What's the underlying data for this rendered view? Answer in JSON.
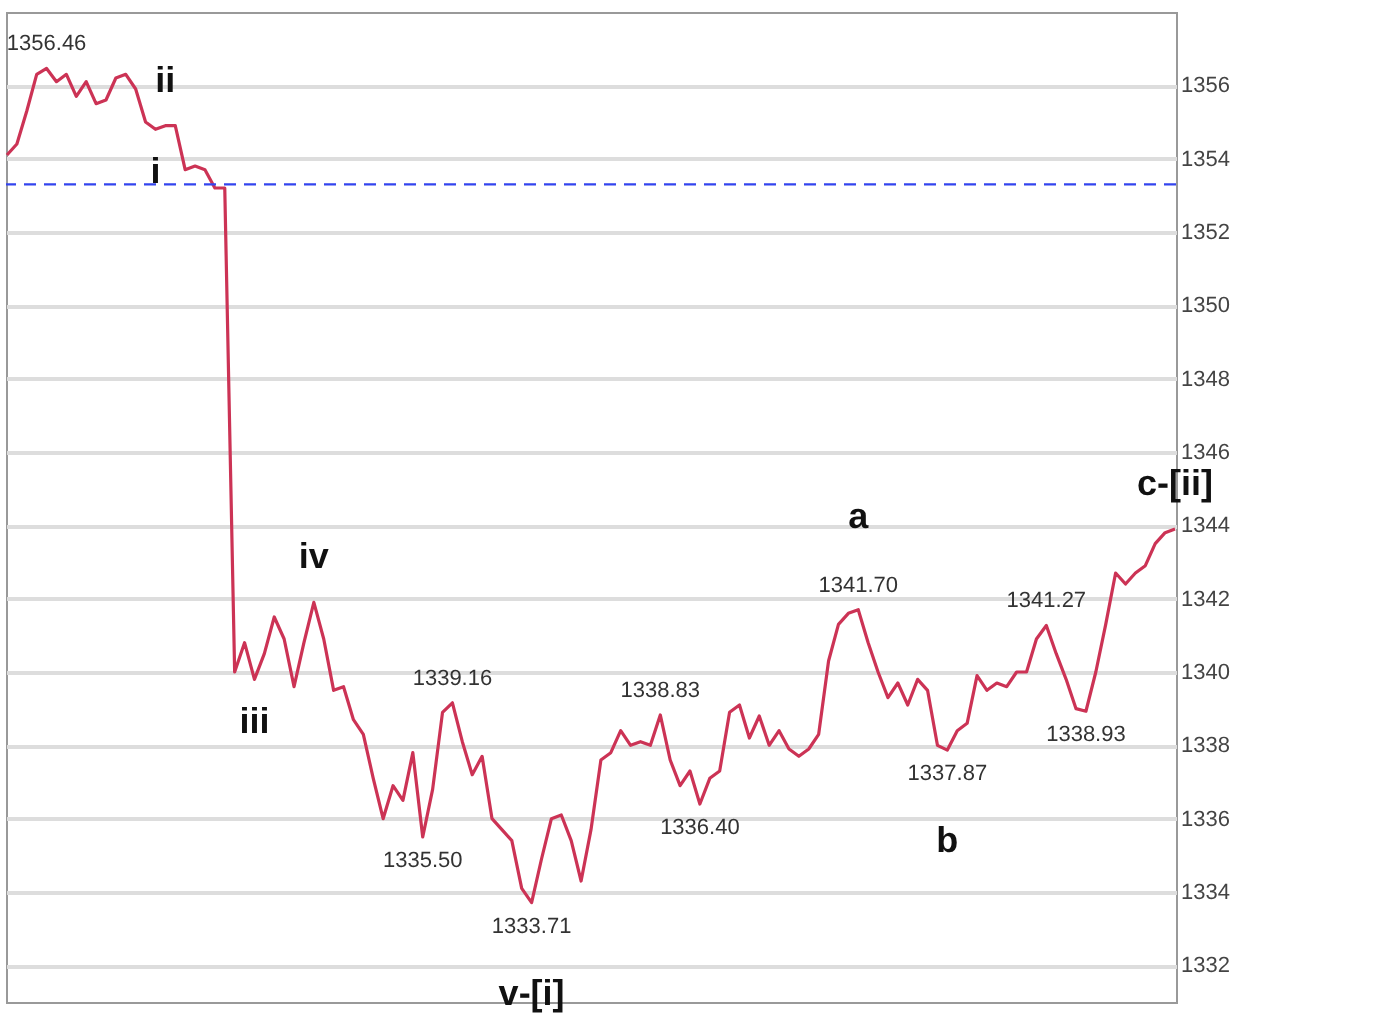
{
  "chart_data": {
    "type": "line",
    "categories": [
      null,
      null,
      null,
      null,
      null,
      null,
      null,
      null,
      null,
      null,
      null,
      null,
      null,
      null,
      null,
      null,
      null,
      null,
      null,
      null,
      null,
      null,
      null,
      null,
      null,
      null,
      null,
      null,
      null,
      null,
      null,
      null,
      null,
      null,
      null,
      null,
      null,
      null,
      null,
      null,
      null,
      null,
      null,
      null,
      null,
      null,
      null,
      null,
      null,
      null,
      null,
      null,
      null,
      null,
      null,
      null,
      null,
      null,
      null,
      null,
      null,
      null,
      null,
      null,
      null,
      null,
      null,
      null,
      null,
      null,
      null,
      null,
      null,
      null,
      null,
      null,
      null,
      null,
      null,
      null,
      null,
      null,
      null,
      null,
      null,
      null,
      null,
      null,
      null,
      null,
      null,
      null,
      null,
      null,
      null,
      null,
      null,
      null,
      null,
      null,
      null,
      null,
      null,
      null,
      null,
      null,
      null,
      null,
      null,
      null,
      null,
      null,
      null,
      null,
      null,
      null,
      null,
      null,
      null
    ],
    "series": [
      {
        "color": "#cc3355",
        "values": [
          1354.1,
          1354.4,
          1355.3,
          1356.3,
          1356.46,
          1356.1,
          1356.3,
          1355.7,
          1356.1,
          1355.5,
          1355.6,
          1356.2,
          1356.3,
          1355.9,
          1355.0,
          1354.8,
          1354.9,
          1354.9,
          1353.7,
          1353.8,
          1353.7,
          1353.2,
          1353.2,
          1340.0,
          1340.8,
          1339.8,
          1340.5,
          1341.5,
          1340.9,
          1339.6,
          1340.8,
          1341.9,
          1340.9,
          1339.5,
          1339.6,
          1338.7,
          1338.3,
          1337.1,
          1336.0,
          1336.9,
          1336.5,
          1337.8,
          1335.5,
          1336.8,
          1338.9,
          1339.16,
          1338.1,
          1337.2,
          1337.7,
          1336.0,
          1335.7,
          1335.4,
          1334.1,
          1333.71,
          1334.9,
          1336.0,
          1336.1,
          1335.4,
          1334.3,
          1335.7,
          1337.6,
          1337.8,
          1338.4,
          1338.0,
          1338.1,
          1338.0,
          1338.83,
          1337.6,
          1336.9,
          1337.3,
          1336.4,
          1337.1,
          1337.3,
          1338.9,
          1339.1,
          1338.2,
          1338.8,
          1338.0,
          1338.4,
          1337.9,
          1337.7,
          1337.9,
          1338.3,
          1340.3,
          1341.3,
          1341.6,
          1341.7,
          1340.8,
          1340.0,
          1339.3,
          1339.7,
          1339.1,
          1339.8,
          1339.5,
          1338.0,
          1337.87,
          1338.4,
          1338.6,
          1339.9,
          1339.5,
          1339.7,
          1339.6,
          1340.0,
          1340.0,
          1340.9,
          1341.27,
          1340.5,
          1339.8,
          1339.0,
          1338.93,
          1340.0,
          1341.3,
          1342.7,
          1342.4,
          1342.7,
          1342.9,
          1343.5,
          1343.8,
          1343.9
        ],
        "value_labels": [
          null,
          null,
          null,
          null,
          "1356.46",
          null,
          null,
          null,
          null,
          null,
          null,
          null,
          null,
          null,
          null,
          null,
          null,
          null,
          null,
          null,
          null,
          null,
          null,
          null,
          null,
          null,
          null,
          null,
          null,
          null,
          null,
          null,
          null,
          null,
          null,
          null,
          null,
          null,
          null,
          null,
          null,
          null,
          "1335.50",
          null,
          null,
          "1339.16",
          null,
          null,
          null,
          null,
          null,
          null,
          null,
          "1333.71",
          null,
          null,
          null,
          null,
          null,
          null,
          null,
          null,
          null,
          null,
          null,
          null,
          "1338.83",
          null,
          null,
          null,
          "1336.40",
          null,
          null,
          null,
          null,
          null,
          null,
          null,
          null,
          null,
          null,
          null,
          null,
          null,
          null,
          null,
          "1341.70",
          null,
          null,
          null,
          null,
          null,
          null,
          null,
          null,
          "1337.87",
          null,
          null,
          null,
          null,
          null,
          null,
          null,
          null,
          null,
          "1341.27",
          null,
          null,
          null,
          "1338.93",
          null,
          null,
          null,
          null,
          null,
          null,
          null,
          null,
          null
        ]
      }
    ],
    "ylim": [
      1331,
      1358
    ],
    "yticks": [
      1332,
      1334,
      1336,
      1338,
      1340,
      1342,
      1344,
      1346,
      1348,
      1350,
      1352,
      1354,
      1356
    ],
    "tick_labels": "y",
    "grid": "y",
    "line_style": "solid",
    "ref_lines": [
      {
        "axis": "y",
        "value": 1353.3,
        "color": "#3344ee",
        "line_style": "dashed"
      }
    ],
    "annotations": [
      {
        "text": "i",
        "y": 1354.8
      },
      {
        "text": "ii",
        "y": 1354.9
      },
      {
        "text": "iii",
        "y": 1339.8
      },
      {
        "text": "iv",
        "y": 1341.9
      },
      {
        "text": "v-[i]",
        "y": 1333.71
      },
      {
        "text": "a",
        "y": 1341.7
      },
      {
        "text": "b",
        "y": 1337.87
      },
      {
        "text": "c-[ii]",
        "y": 1343.9
      }
    ]
  }
}
